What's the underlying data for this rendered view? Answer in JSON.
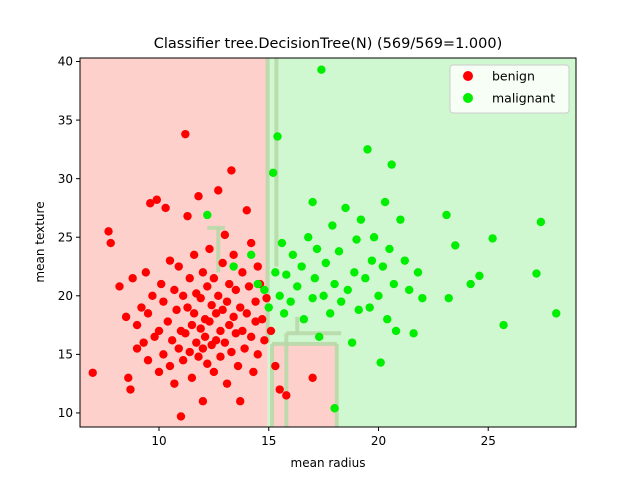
{
  "chart_data": {
    "type": "scatter",
    "title": "Classifier tree.DecisionTree(N) (569/569=1.000)",
    "xlabel": "mean radius",
    "ylabel": "mean texture",
    "xlim": [
      6.4,
      29.0
    ],
    "ylim": [
      8.8,
      40.3
    ],
    "xticks": [
      10,
      15,
      20,
      25
    ],
    "yticks": [
      10,
      15,
      20,
      25,
      30,
      35,
      40
    ],
    "grid": false,
    "legend_position": "top-right",
    "background_regions": {
      "benign_color": "#fdd0cc",
      "malignant_color": "#d0f8d0",
      "boundary_color": "#b8d8a8",
      "benign_x_max": 14.95,
      "notes": "decision regions: left of ~15 benign, right malignant, with a benign pocket at bottom between ~15.1 and ~18.1 below ~16"
    },
    "series": [
      {
        "name": "benign",
        "color": "#ff0000",
        "points": [
          [
            6.98,
            13.43
          ],
          [
            7.7,
            25.5
          ],
          [
            7.8,
            24.5
          ],
          [
            8.2,
            20.8
          ],
          [
            8.5,
            18.2
          ],
          [
            8.6,
            13.0
          ],
          [
            8.7,
            12.0
          ],
          [
            8.8,
            21.5
          ],
          [
            9.0,
            17.5
          ],
          [
            9.0,
            15.5
          ],
          [
            9.2,
            19.0
          ],
          [
            9.3,
            16.0
          ],
          [
            9.4,
            22.0
          ],
          [
            9.5,
            14.5
          ],
          [
            9.5,
            18.5
          ],
          [
            9.6,
            27.9
          ],
          [
            9.7,
            20.0
          ],
          [
            9.8,
            16.5
          ],
          [
            9.9,
            28.2
          ],
          [
            10.0,
            17.0
          ],
          [
            10.0,
            13.5
          ],
          [
            10.1,
            21.0
          ],
          [
            10.2,
            15.0
          ],
          [
            10.2,
            19.5
          ],
          [
            10.3,
            27.5
          ],
          [
            10.4,
            17.8
          ],
          [
            10.5,
            14.0
          ],
          [
            10.5,
            23.0
          ],
          [
            10.6,
            16.2
          ],
          [
            10.7,
            20.5
          ],
          [
            10.7,
            12.5
          ],
          [
            10.8,
            18.8
          ],
          [
            10.9,
            15.5
          ],
          [
            10.9,
            22.5
          ],
          [
            11.0,
            9.7
          ],
          [
            11.0,
            17.0
          ],
          [
            11.1,
            20.0
          ],
          [
            11.1,
            14.5
          ],
          [
            11.2,
            33.8
          ],
          [
            11.2,
            16.8
          ],
          [
            11.3,
            19.0
          ],
          [
            11.3,
            26.8
          ],
          [
            11.4,
            15.2
          ],
          [
            11.4,
            21.5
          ],
          [
            11.5,
            17.5
          ],
          [
            11.5,
            13.0
          ],
          [
            11.6,
            18.5
          ],
          [
            11.6,
            23.5
          ],
          [
            11.7,
            16.0
          ],
          [
            11.7,
            20.2
          ],
          [
            11.8,
            14.8
          ],
          [
            11.8,
            28.5
          ],
          [
            11.9,
            17.2
          ],
          [
            11.9,
            19.8
          ],
          [
            12.0,
            15.5
          ],
          [
            12.0,
            22.0
          ],
          [
            12.0,
            11.0
          ],
          [
            12.1,
            18.0
          ],
          [
            12.1,
            16.5
          ],
          [
            12.2,
            20.8
          ],
          [
            12.2,
            14.2
          ],
          [
            12.3,
            24.0
          ],
          [
            12.3,
            17.8
          ],
          [
            12.4,
            19.2
          ],
          [
            12.4,
            15.8
          ],
          [
            12.5,
            21.5
          ],
          [
            12.5,
            13.5
          ],
          [
            12.6,
            18.5
          ],
          [
            12.6,
            16.2
          ],
          [
            12.7,
            29.0
          ],
          [
            12.7,
            20.0
          ],
          [
            12.8,
            17.0
          ],
          [
            12.8,
            14.8
          ],
          [
            12.9,
            22.8
          ],
          [
            12.9,
            18.8
          ],
          [
            13.0,
            16.0
          ],
          [
            13.0,
            25.2
          ],
          [
            13.1,
            19.5
          ],
          [
            13.1,
            12.5
          ],
          [
            13.2,
            17.5
          ],
          [
            13.2,
            21.0
          ],
          [
            13.3,
            15.2
          ],
          [
            13.3,
            30.7
          ],
          [
            13.4,
            18.2
          ],
          [
            13.4,
            23.5
          ],
          [
            13.5,
            16.8
          ],
          [
            13.5,
            20.5
          ],
          [
            13.6,
            14.0
          ],
          [
            13.7,
            19.0
          ],
          [
            13.7,
            11.0
          ],
          [
            13.8,
            17.0
          ],
          [
            13.8,
            22.0
          ],
          [
            13.9,
            15.5
          ],
          [
            14.0,
            27.3
          ],
          [
            14.0,
            18.5
          ],
          [
            14.1,
            20.8
          ],
          [
            14.2,
            16.5
          ],
          [
            14.2,
            24.5
          ],
          [
            14.3,
            13.5
          ],
          [
            14.4,
            19.5
          ],
          [
            14.4,
            17.8
          ],
          [
            14.5,
            22.5
          ],
          [
            14.5,
            15.0
          ],
          [
            14.6,
            21.0
          ],
          [
            14.7,
            18.0
          ],
          [
            14.8,
            16.2
          ],
          [
            14.9,
            19.8
          ],
          [
            15.1,
            17.0
          ],
          [
            15.3,
            14.0
          ],
          [
            15.5,
            12.0
          ],
          [
            17.0,
            13.0
          ],
          [
            15.8,
            11.5
          ]
        ]
      },
      {
        "name": "malignant",
        "color": "#00ee00",
        "points": [
          [
            12.2,
            26.9
          ],
          [
            13.4,
            22.5
          ],
          [
            14.2,
            23.5
          ],
          [
            14.5,
            21.0
          ],
          [
            14.8,
            20.5
          ],
          [
            15.0,
            19.0
          ],
          [
            15.2,
            30.5
          ],
          [
            15.3,
            22.0
          ],
          [
            15.4,
            33.6
          ],
          [
            15.5,
            20.0
          ],
          [
            15.6,
            24.5
          ],
          [
            15.7,
            18.5
          ],
          [
            15.8,
            21.8
          ],
          [
            16.0,
            19.5
          ],
          [
            16.1,
            23.5
          ],
          [
            16.3,
            20.8
          ],
          [
            16.5,
            22.5
          ],
          [
            16.6,
            18.0
          ],
          [
            16.8,
            25.0
          ],
          [
            17.0,
            19.8
          ],
          [
            17.0,
            28.0
          ],
          [
            17.1,
            21.5
          ],
          [
            17.2,
            24.0
          ],
          [
            17.3,
            16.5
          ],
          [
            17.4,
            39.3
          ],
          [
            17.5,
            20.0
          ],
          [
            17.6,
            22.8
          ],
          [
            17.8,
            18.5
          ],
          [
            17.9,
            26.0
          ],
          [
            18.0,
            21.0
          ],
          [
            18.0,
            10.4
          ],
          [
            18.2,
            23.8
          ],
          [
            18.3,
            19.5
          ],
          [
            18.5,
            27.5
          ],
          [
            18.6,
            20.5
          ],
          [
            18.8,
            16.0
          ],
          [
            18.9,
            22.0
          ],
          [
            19.0,
            24.8
          ],
          [
            19.1,
            18.8
          ],
          [
            19.2,
            26.5
          ],
          [
            19.4,
            21.5
          ],
          [
            19.5,
            32.5
          ],
          [
            19.6,
            19.0
          ],
          [
            19.7,
            23.0
          ],
          [
            19.8,
            25.0
          ],
          [
            20.0,
            20.0
          ],
          [
            20.1,
            14.3
          ],
          [
            20.2,
            22.5
          ],
          [
            20.3,
            28.0
          ],
          [
            20.4,
            18.0
          ],
          [
            20.5,
            24.0
          ],
          [
            20.6,
            31.2
          ],
          [
            20.7,
            21.0
          ],
          [
            20.8,
            17.0
          ],
          [
            21.0,
            26.5
          ],
          [
            21.2,
            23.0
          ],
          [
            21.4,
            20.5
          ],
          [
            21.6,
            16.8
          ],
          [
            21.8,
            22.0
          ],
          [
            22.0,
            19.8
          ],
          [
            23.1,
            26.9
          ],
          [
            23.2,
            19.8
          ],
          [
            23.5,
            24.3
          ],
          [
            24.2,
            21.0
          ],
          [
            24.6,
            21.7
          ],
          [
            25.2,
            24.9
          ],
          [
            25.7,
            17.5
          ],
          [
            27.2,
            21.9
          ],
          [
            27.4,
            26.3
          ],
          [
            28.1,
            18.5
          ]
        ]
      }
    ]
  }
}
